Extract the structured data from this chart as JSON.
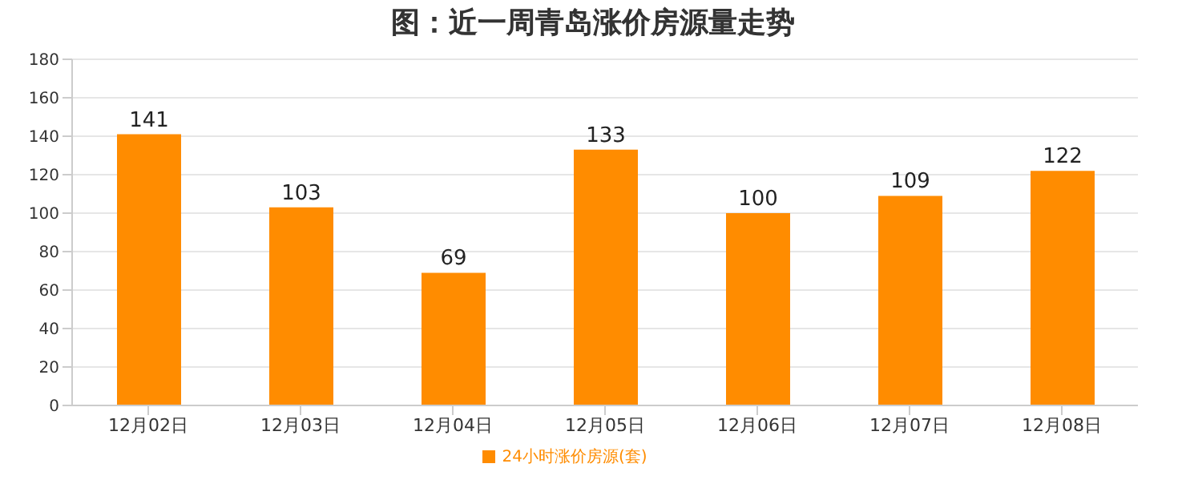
{
  "chart_data": {
    "type": "bar",
    "title": "图：近一周青岛涨价房源量走势",
    "categories": [
      "12月02日",
      "12月03日",
      "12月04日",
      "12月05日",
      "12月06日",
      "12月07日",
      "12月08日"
    ],
    "series": [
      {
        "name": "24小时涨价房源(套)",
        "color": "#ff8c00",
        "values": [
          141,
          103,
          69,
          133,
          100,
          109,
          122
        ]
      }
    ],
    "ylim": [
      0,
      180
    ],
    "yticks": [
      0,
      20,
      40,
      60,
      80,
      100,
      120,
      140,
      160,
      180
    ],
    "grid": "y",
    "data_labels": true,
    "legend": "bottom"
  }
}
